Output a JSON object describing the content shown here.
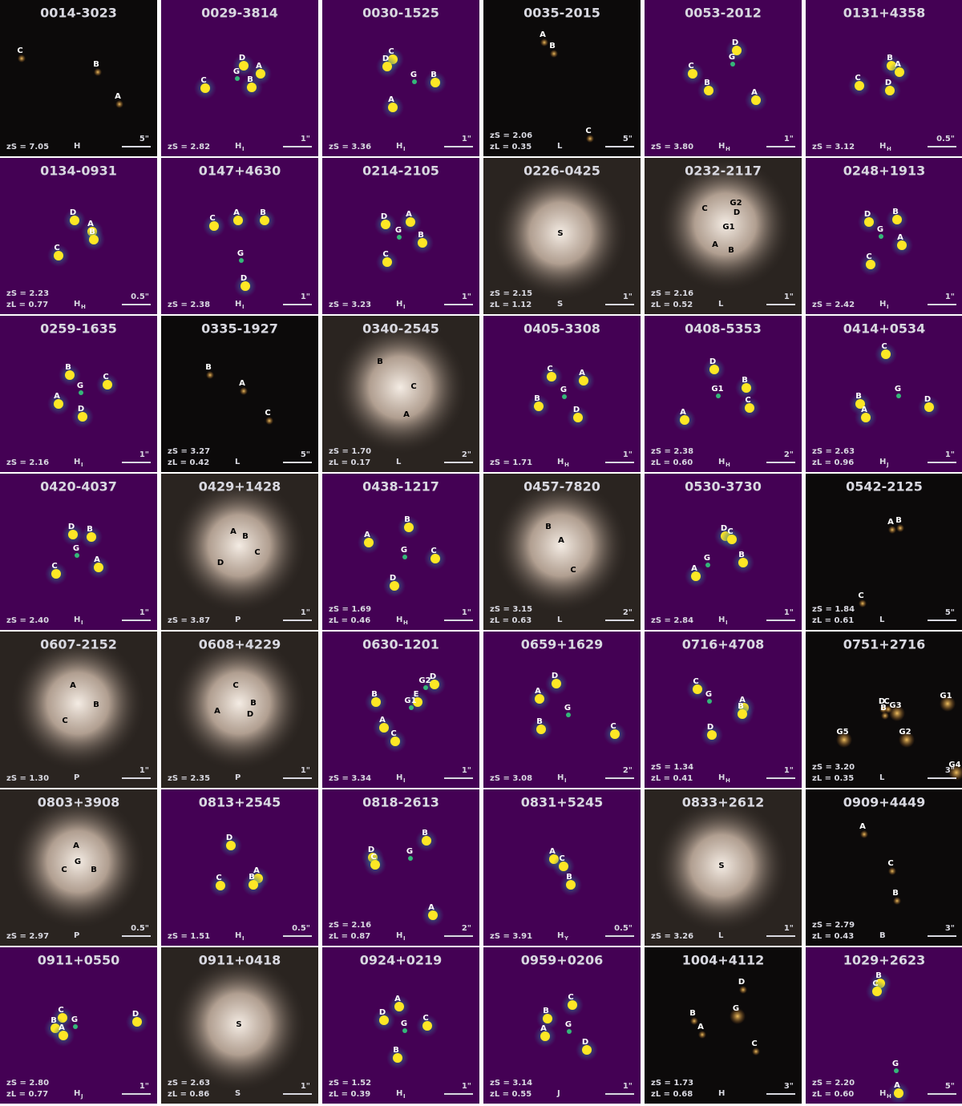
{
  "panels": [
    {
      "title": "0014-3023",
      "style": "dark",
      "labels": [
        "C",
        "B",
        "A"
      ],
      "zs": "zS = 7.05",
      "band": "H",
      "scale": "5\""
    },
    {
      "title": "0029-3814",
      "style": "viridis",
      "labels": [
        "D",
        "A",
        "G",
        "C",
        "B"
      ],
      "zs": "zS = 2.82",
      "band": "H",
      "band_sub": "I",
      "scale": "1\""
    },
    {
      "title": "0030-1525",
      "style": "viridis",
      "labels": [
        "C",
        "D",
        "G",
        "B",
        "A"
      ],
      "zs": "zS = 3.36",
      "band": "H",
      "band_sub": "I",
      "scale": "1\""
    },
    {
      "title": "0035-2015",
      "style": "dark",
      "labels": [
        "A",
        "B",
        "C"
      ],
      "zs": "zS = 2.06",
      "zl": "zL = 0.35",
      "band": "L",
      "scale": "5\""
    },
    {
      "title": "0053-2012",
      "style": "viridis",
      "labels": [
        "D",
        "G",
        "C",
        "B",
        "A"
      ],
      "zs": "zS = 3.80",
      "band": "H",
      "band_sub": "H",
      "scale": "1\""
    },
    {
      "title": "0131+4358",
      "style": "viridis",
      "labels": [
        "B",
        "A",
        "C",
        "D"
      ],
      "zs": "zS = 3.12",
      "band": "H",
      "band_sub": "H",
      "scale": "0.5\""
    },
    {
      "title": "0134-0931",
      "style": "viridis",
      "labels": [
        "D",
        "A",
        "B",
        "C"
      ],
      "zs": "zS = 2.23",
      "zl": "zL = 0.77",
      "band": "H",
      "band_sub": "H",
      "scale": "0.5\""
    },
    {
      "title": "0147+4630",
      "style": "viridis",
      "labels": [
        "C",
        "A",
        "B",
        "G",
        "D"
      ],
      "zs": "zS = 2.38",
      "band": "H",
      "band_sub": "I",
      "scale": "1\""
    },
    {
      "title": "0214-2105",
      "style": "viridis",
      "labels": [
        "D",
        "A",
        "G",
        "B",
        "C"
      ],
      "zs": "zS = 3.23",
      "band": "H",
      "band_sub": "I",
      "scale": "1\""
    },
    {
      "title": "0226-0425",
      "style": "bright",
      "labels": [
        "S"
      ],
      "zs": "zS = 2.15",
      "zl": "zL = 1.12",
      "band": "S",
      "scale": "1\""
    },
    {
      "title": "0232-2117",
      "style": "bright",
      "labels": [
        "G2",
        "D",
        "C",
        "G1",
        "A",
        "B"
      ],
      "zs": "zS = 2.16",
      "zl": "zL = 0.52",
      "band": "L",
      "scale": "1\""
    },
    {
      "title": "0248+1913",
      "style": "viridis",
      "labels": [
        "D",
        "B",
        "G",
        "A",
        "C"
      ],
      "zs": "zS = 2.42",
      "band": "H",
      "band_sub": "I",
      "scale": "1\""
    },
    {
      "title": "0259-1635",
      "style": "viridis",
      "labels": [
        "B",
        "C",
        "G",
        "A",
        "D"
      ],
      "zs": "zS = 2.16",
      "band": "H",
      "band_sub": "I",
      "scale": "1\""
    },
    {
      "title": "0335-1927",
      "style": "dark",
      "labels": [
        "B",
        "A",
        "C"
      ],
      "zs": "zS = 3.27",
      "zl": "zL = 0.42",
      "band": "L",
      "scale": "5\""
    },
    {
      "title": "0340-2545",
      "style": "bright",
      "labels": [
        "B",
        "C",
        "A"
      ],
      "zs": "zS = 1.70",
      "zl": "zL = 0.17",
      "band": "L",
      "scale": "2\""
    },
    {
      "title": "0405-3308",
      "style": "viridis",
      "labels": [
        "C",
        "A",
        "G",
        "B",
        "D"
      ],
      "zs": "zS = 1.71",
      "band": "H",
      "band_sub": "H",
      "scale": "1\""
    },
    {
      "title": "0408-5353",
      "style": "viridis",
      "labels": [
        "D",
        "B",
        "G1",
        "C",
        "A"
      ],
      "zs": "zS = 2.38",
      "zl": "zL = 0.60",
      "band": "H",
      "band_sub": "H",
      "scale": "2\""
    },
    {
      "title": "0414+0534",
      "style": "viridis",
      "labels": [
        "C",
        "G",
        "B",
        "D",
        "A"
      ],
      "zs": "zS = 2.63",
      "zl": "zL = 0.96",
      "band": "H",
      "band_sub": "J",
      "scale": "1\""
    },
    {
      "title": "0420-4037",
      "style": "viridis",
      "labels": [
        "D",
        "B",
        "G",
        "A",
        "C"
      ],
      "zs": "zS = 2.40",
      "band": "H",
      "band_sub": "I",
      "scale": "1\""
    },
    {
      "title": "0429+1428",
      "style": "bright",
      "labels": [
        "A",
        "B",
        "C",
        "D"
      ],
      "zs": "zS = 3.87",
      "band": "P",
      "scale": "1\""
    },
    {
      "title": "0438-1217",
      "style": "viridis",
      "labels": [
        "B",
        "A",
        "G",
        "C",
        "D"
      ],
      "zs": "zS = 1.69",
      "zl": "zL = 0.46",
      "band": "H",
      "band_sub": "H",
      "scale": "1\""
    },
    {
      "title": "0457-7820",
      "style": "bright",
      "labels": [
        "B",
        "A",
        "C"
      ],
      "zs": "zS = 3.15",
      "zl": "zL = 0.63",
      "band": "L",
      "scale": "2\""
    },
    {
      "title": "0530-3730",
      "style": "viridis",
      "labels": [
        "D",
        "C",
        "G",
        "B",
        "A"
      ],
      "zs": "zS = 2.84",
      "band": "H",
      "band_sub": "I",
      "scale": "1\""
    },
    {
      "title": "0542-2125",
      "style": "dark",
      "labels": [
        "A",
        "B",
        "C"
      ],
      "zs": "zS = 1.84",
      "zl": "zL = 0.61",
      "band": "L",
      "scale": "5\""
    },
    {
      "title": "0607-2152",
      "style": "bright",
      "labels": [
        "A",
        "B",
        "C"
      ],
      "zs": "zS = 1.30",
      "band": "P",
      "scale": "1\""
    },
    {
      "title": "0608+4229",
      "style": "bright",
      "labels": [
        "C",
        "B",
        "A",
        "D"
      ],
      "zs": "zS = 2.35",
      "band": "P",
      "scale": "1\""
    },
    {
      "title": "0630-1201",
      "style": "viridis",
      "labels": [
        "D",
        "G2",
        "E",
        "G1",
        "B",
        "A",
        "C"
      ],
      "zs": "zS = 3.34",
      "band": "H",
      "band_sub": "I",
      "scale": "1\""
    },
    {
      "title": "0659+1629",
      "style": "viridis",
      "labels": [
        "D",
        "A",
        "G",
        "B",
        "C"
      ],
      "zs": "zS = 3.08",
      "band": "H",
      "band_sub": "I",
      "scale": "2\""
    },
    {
      "title": "0716+4708",
      "style": "viridis",
      "labels": [
        "C",
        "G",
        "A",
        "B",
        "D"
      ],
      "zs": "zS = 1.34",
      "zl": "zL = 0.41",
      "band": "H",
      "band_sub": "H",
      "scale": "1\""
    },
    {
      "title": "0751+2716",
      "style": "dark",
      "labels": [
        "G1",
        "D",
        "C",
        "B",
        "G3",
        "G5",
        "G2",
        "G4"
      ],
      "zs": "zS = 3.20",
      "zl": "zL = 0.35",
      "band": "L",
      "scale": "3\""
    },
    {
      "title": "0803+3908",
      "style": "bright",
      "labels": [
        "A",
        "G",
        "C",
        "B"
      ],
      "zs": "zS = 2.97",
      "band": "P",
      "scale": "0.5\""
    },
    {
      "title": "0813+2545",
      "style": "viridis",
      "labels": [
        "D",
        "A",
        "B",
        "C"
      ],
      "zs": "zS = 1.51",
      "band": "H",
      "band_sub": "I",
      "scale": "0.5\""
    },
    {
      "title": "0818-2613",
      "style": "viridis",
      "labels": [
        "B",
        "D",
        "G",
        "C",
        "A"
      ],
      "zs": "zS = 2.16",
      "zl": "zL = 0.87",
      "band": "H",
      "band_sub": "I",
      "scale": "2\""
    },
    {
      "title": "0831+5245",
      "style": "viridis",
      "labels": [
        "A",
        "C",
        "B"
      ],
      "zs": "zS = 3.91",
      "band": "H",
      "band_sub": "Y",
      "scale": "0.5\""
    },
    {
      "title": "0833+2612",
      "style": "bright",
      "labels": [
        "S"
      ],
      "zs": "zS = 3.26",
      "band": "L",
      "scale": "1\""
    },
    {
      "title": "0909+4449",
      "style": "dark",
      "labels": [
        "A",
        "C",
        "B"
      ],
      "zs": "zS = 2.79",
      "zl": "zL = 0.43",
      "band": "B",
      "scale": "3\""
    },
    {
      "title": "0911+0550",
      "style": "viridis",
      "labels": [
        "C",
        "B",
        "G",
        "A",
        "D"
      ],
      "zs": "zS = 2.80",
      "zl": "zL = 0.77",
      "band": "H",
      "band_sub": "J",
      "scale": "1\""
    },
    {
      "title": "0911+0418",
      "style": "bright",
      "labels": [
        "S"
      ],
      "zs": "zS = 2.63",
      "zl": "zL = 0.86",
      "band": "S",
      "scale": "1\""
    },
    {
      "title": "0924+0219",
      "style": "viridis",
      "labels": [
        "A",
        "D",
        "C",
        "G",
        "B"
      ],
      "zs": "zS = 1.52",
      "zl": "zL = 0.39",
      "band": "H",
      "band_sub": "I",
      "scale": "1\""
    },
    {
      "title": "0959+0206",
      "style": "viridis",
      "labels": [
        "C",
        "B",
        "G",
        "A",
        "D"
      ],
      "zs": "zS = 3.14",
      "zl": "zL = 0.55",
      "band": "J",
      "scale": "1\""
    },
    {
      "title": "1004+4112",
      "style": "dark",
      "labels": [
        "D",
        "G",
        "B",
        "A",
        "C"
      ],
      "zs": "zS = 1.73",
      "zl": "zL = 0.68",
      "band": "H",
      "scale": "3\""
    },
    {
      "title": "1029+2623",
      "style": "viridis",
      "labels": [
        "B",
        "C",
        "G",
        "A"
      ],
      "zs": "zS = 2.20",
      "zl": "zL = 0.60",
      "band": "H",
      "band_sub": "H",
      "scale": "5\""
    }
  ]
}
